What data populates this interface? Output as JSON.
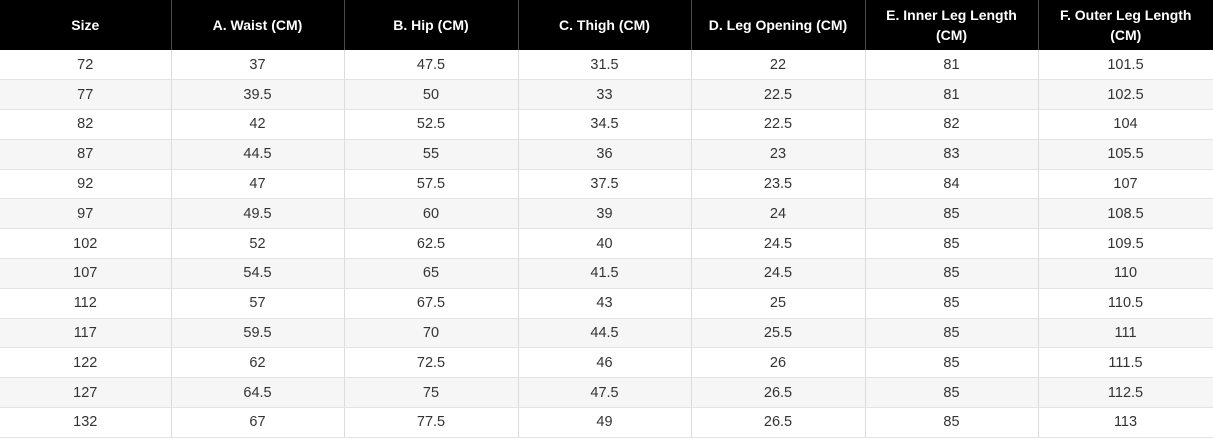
{
  "table": {
    "headers": [
      "Size",
      "A. Waist (CM)",
      "B. Hip (CM)",
      "C. Thigh (CM)",
      "D. Leg Opening (CM)",
      "E. Inner Leg Length (CM)",
      "F. Outer Leg Length (CM)"
    ],
    "rows": [
      [
        "72",
        "37",
        "47.5",
        "31.5",
        "22",
        "81",
        "101.5"
      ],
      [
        "77",
        "39.5",
        "50",
        "33",
        "22.5",
        "81",
        "102.5"
      ],
      [
        "82",
        "42",
        "52.5",
        "34.5",
        "22.5",
        "82",
        "104"
      ],
      [
        "87",
        "44.5",
        "55",
        "36",
        "23",
        "83",
        "105.5"
      ],
      [
        "92",
        "47",
        "57.5",
        "37.5",
        "23.5",
        "84",
        "107"
      ],
      [
        "97",
        "49.5",
        "60",
        "39",
        "24",
        "85",
        "108.5"
      ],
      [
        "102",
        "52",
        "62.5",
        "40",
        "24.5",
        "85",
        "109.5"
      ],
      [
        "107",
        "54.5",
        "65",
        "41.5",
        "24.5",
        "85",
        "110"
      ],
      [
        "112",
        "57",
        "67.5",
        "43",
        "25",
        "85",
        "110.5"
      ],
      [
        "117",
        "59.5",
        "70",
        "44.5",
        "25.5",
        "85",
        "111"
      ],
      [
        "122",
        "62",
        "72.5",
        "46",
        "26",
        "85",
        "111.5"
      ],
      [
        "127",
        "64.5",
        "75",
        "47.5",
        "26.5",
        "85",
        "112.5"
      ],
      [
        "132",
        "67",
        "77.5",
        "49",
        "26.5",
        "85",
        "113"
      ]
    ]
  }
}
